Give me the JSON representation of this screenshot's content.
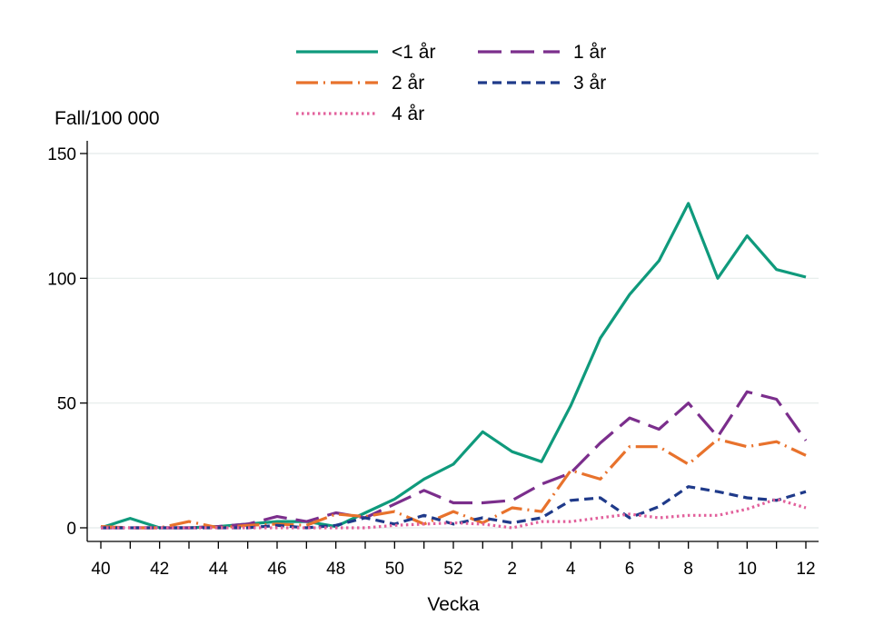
{
  "chart_data": {
    "type": "line",
    "xlabel": "Vecka",
    "ylabel": "Fall/100 000",
    "ylim": [
      0,
      150
    ],
    "yticks": [
      0,
      50,
      100,
      150
    ],
    "categories": [
      "40",
      "41",
      "42",
      "43",
      "44",
      "45",
      "46",
      "47",
      "48",
      "49",
      "50",
      "51",
      "52",
      "1",
      "2",
      "3",
      "4",
      "5",
      "6",
      "7",
      "8",
      "9",
      "10",
      "11",
      "12"
    ],
    "xtick_labels": [
      "40",
      "42",
      "44",
      "46",
      "48",
      "50",
      "52",
      "2",
      "4",
      "6",
      "8",
      "10",
      "12"
    ],
    "grid": true,
    "legend_position": "top",
    "series": [
      {
        "name": "<1 år",
        "color": "#0f9a7c",
        "dash": "solid",
        "values": [
          0,
          3.8,
          0,
          0,
          0.5,
          1.5,
          2.5,
          2.5,
          0.5,
          6,
          11.5,
          19.5,
          25.5,
          38.5,
          30.5,
          26.5,
          49,
          76,
          93.5,
          107,
          130,
          100,
          117,
          103.5,
          100.5
        ]
      },
      {
        "name": "1 år",
        "color": "#7b2e8c",
        "dash": "longdash",
        "values": [
          0,
          0,
          0,
          0,
          0.5,
          1.5,
          4.5,
          2.5,
          6,
          4,
          9.5,
          15,
          10,
          10,
          11,
          17.5,
          22,
          34,
          44,
          39.5,
          50,
          36.5,
          54.5,
          51.5,
          35
        ]
      },
      {
        "name": "2 år",
        "color": "#e8722c",
        "dash": "dashdot",
        "values": [
          0.5,
          0,
          0,
          2.5,
          0,
          1,
          1.5,
          1,
          5.5,
          4.5,
          6.5,
          1.5,
          6.5,
          2,
          8,
          6.5,
          23,
          19.5,
          32.5,
          32.5,
          25.5,
          35.5,
          32.5,
          34.5,
          29
        ]
      },
      {
        "name": "3 år",
        "color": "#1f3a8a",
        "dash": "shortdash",
        "values": [
          0,
          0,
          0,
          0,
          0,
          0,
          1,
          0,
          1,
          4,
          1.5,
          5,
          1.5,
          4,
          2,
          4,
          11,
          12,
          4,
          8.5,
          16.5,
          14.5,
          12,
          11,
          14.5
        ]
      },
      {
        "name": "4 år",
        "color": "#e2619c",
        "dash": "dot",
        "values": [
          0,
          0,
          0,
          0,
          0,
          0,
          0,
          0,
          0,
          0,
          1,
          1.5,
          2,
          1.5,
          0,
          2.5,
          2.5,
          4,
          5.5,
          4,
          5,
          5,
          7.5,
          11.5,
          8
        ]
      }
    ]
  }
}
